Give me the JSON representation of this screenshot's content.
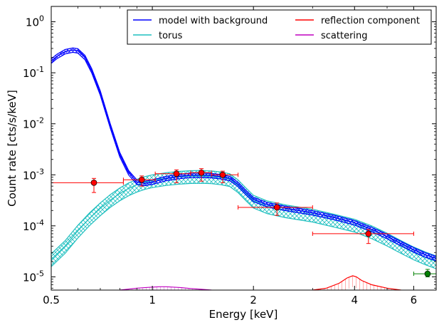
{
  "chart_data": {
    "type": "line",
    "title": "",
    "xlabel": "Energy [keV]",
    "ylabel": "Count rate [cts/s/keV]",
    "xscale": "log",
    "yscale": "log",
    "xlim": [
      0.5,
      7.0
    ],
    "ylim": [
      5.5e-06,
      2.0
    ],
    "grid": false,
    "legend_position": "top-right",
    "legend_columns": 2,
    "x_ticks": [
      {
        "value": 0.5,
        "label": "0.5"
      },
      {
        "value": 1,
        "label": "1"
      },
      {
        "value": 2,
        "label": "2"
      },
      {
        "value": 4,
        "label": "4"
      },
      {
        "value": 6,
        "label": "6"
      }
    ],
    "y_ticks": [
      {
        "value": 1e-05,
        "base": "10",
        "exp": "-5"
      },
      {
        "value": 0.0001,
        "base": "10",
        "exp": "-4"
      },
      {
        "value": 0.001,
        "base": "10",
        "exp": "-3"
      },
      {
        "value": 0.01,
        "base": "10",
        "exp": "-2"
      },
      {
        "value": 0.1,
        "base": "10",
        "exp": "-1"
      },
      {
        "value": 1,
        "base": "10",
        "exp": "0"
      }
    ],
    "legend": [
      {
        "name": "model with background",
        "color": "#0000ff"
      },
      {
        "name": "torus",
        "color": "#1fbfbf"
      },
      {
        "name": "reflection component",
        "color": "#ff0000"
      },
      {
        "name": "scattering",
        "color": "#bf00bf"
      }
    ],
    "series": [
      {
        "name": "model with background",
        "color": "#0000ff",
        "x": [
          0.5,
          0.52,
          0.55,
          0.58,
          0.6,
          0.63,
          0.66,
          0.7,
          0.75,
          0.8,
          0.85,
          0.9,
          0.95,
          1.0,
          1.1,
          1.2,
          1.3,
          1.4,
          1.5,
          1.6,
          1.7,
          1.8,
          1.9,
          2.0,
          2.2,
          2.5,
          3.0,
          3.5,
          4.0,
          4.5,
          5.0,
          5.5,
          6.0,
          6.5,
          7.0
        ],
        "y": [
          0.17,
          0.21,
          0.26,
          0.28,
          0.27,
          0.2,
          0.11,
          0.04,
          0.009,
          0.0025,
          0.0011,
          0.00072,
          0.00068,
          0.00072,
          0.00085,
          0.00093,
          0.00098,
          0.00099,
          0.00097,
          0.00092,
          0.00085,
          0.00065,
          0.00045,
          0.00033,
          0.00026,
          0.00022,
          0.00018,
          0.000145,
          0.000115,
          8.5e-05,
          6.2e-05,
          4.5e-05,
          3.4e-05,
          2.7e-05,
          2.3e-05
        ]
      },
      {
        "name": "torus",
        "color": "#1fbfbf",
        "x": [
          0.5,
          0.55,
          0.6,
          0.65,
          0.7,
          0.75,
          0.8,
          0.85,
          0.9,
          0.95,
          1.0,
          1.1,
          1.2,
          1.3,
          1.4,
          1.5,
          1.6,
          1.7,
          1.8,
          1.9,
          2.0,
          2.2,
          2.5,
          3.0,
          3.5,
          4.0,
          4.5,
          5.0,
          5.5,
          6.0,
          6.5,
          7.0
        ],
        "y": [
          2.2e-05,
          4e-05,
          8e-05,
          0.00014,
          0.00022,
          0.00032,
          0.00043,
          0.00054,
          0.00064,
          0.00072,
          0.00078,
          0.00086,
          0.00091,
          0.00094,
          0.00095,
          0.00093,
          0.00089,
          0.00082,
          0.00062,
          0.00043,
          0.00031,
          0.00024,
          0.0002,
          0.000165,
          0.00013,
          0.000105,
          7.8e-05,
          5.6e-05,
          4e-05,
          3e-05,
          2.4e-05,
          2e-05
        ]
      },
      {
        "name": "reflection component",
        "color": "#ff0000",
        "x": [
          3.0,
          3.3,
          3.6,
          3.8,
          3.95,
          4.05,
          4.2,
          4.5,
          5.0,
          5.5
        ],
        "y": [
          5.5e-06,
          6e-06,
          7.5e-06,
          9.5e-06,
          1.05e-05,
          1e-05,
          8.5e-06,
          7e-06,
          6e-06,
          5.5e-06
        ]
      },
      {
        "name": "scattering",
        "color": "#bf00bf",
        "x": [
          0.8,
          0.9,
          1.0,
          1.05,
          1.1,
          1.2,
          1.3,
          1.4,
          1.5
        ],
        "y": [
          5.5e-06,
          6e-06,
          6.3e-06,
          6.4e-06,
          6.4e-06,
          6.2e-06,
          5.9e-06,
          5.7e-06,
          5.5e-06
        ]
      }
    ],
    "data_points": [
      {
        "x": 0.67,
        "y": 0.0007,
        "xlo": 0.5,
        "xhi": 0.82,
        "ylo": 0.00045,
        "yhi": 0.00085,
        "color": "#ff0000"
      },
      {
        "x": 0.93,
        "y": 0.0008,
        "xlo": 0.82,
        "xhi": 1.02,
        "ylo": 0.0006,
        "yhi": 0.00095,
        "color": "#ff0000"
      },
      {
        "x": 1.18,
        "y": 0.00105,
        "xlo": 1.02,
        "xhi": 1.3,
        "ylo": 0.0007,
        "yhi": 0.00125,
        "color": "#ff0000"
      },
      {
        "x": 1.4,
        "y": 0.0011,
        "xlo": 1.3,
        "xhi": 1.5,
        "ylo": 0.00075,
        "yhi": 0.00132,
        "color": "#ff0000"
      },
      {
        "x": 1.62,
        "y": 0.001,
        "xlo": 1.5,
        "xhi": 1.8,
        "ylo": 0.0007,
        "yhi": 0.00118,
        "color": "#ff0000"
      },
      {
        "x": 2.35,
        "y": 0.00023,
        "xlo": 1.8,
        "xhi": 3.0,
        "ylo": 0.00016,
        "yhi": 0.00028,
        "color": "#ff0000"
      },
      {
        "x": 4.4,
        "y": 7e-05,
        "xlo": 3.0,
        "xhi": 6.0,
        "ylo": 4.5e-05,
        "yhi": 8.5e-05,
        "color": "#ff0000"
      },
      {
        "x": 6.6,
        "y": 1.15e-05,
        "xlo": 6.0,
        "xhi": 7.0,
        "ylo": 1e-05,
        "yhi": 1.4e-05,
        "color": "#008000"
      }
    ]
  }
}
